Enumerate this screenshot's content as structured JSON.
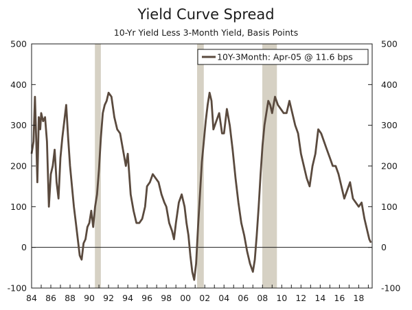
{
  "chart_data": {
    "type": "line",
    "title": "Yield Curve Spread",
    "subtitle": "10-Yr Yield Less 3-Month Yield, Basis Points",
    "legend": "10Y-3Month: Apr-05 @ 11.6 bps",
    "legend_position": "top-right",
    "xlim": [
      1984,
      2019.4
    ],
    "ylim": [
      -100,
      500
    ],
    "yticks": [
      -100,
      0,
      100,
      200,
      300,
      400,
      500
    ],
    "ytick_labels": [
      "-100",
      "0",
      "100",
      "200",
      "300",
      "400",
      "500"
    ],
    "xtick_labels": [
      "84",
      "86",
      "88",
      "90",
      "92",
      "94",
      "96",
      "98",
      "00",
      "02",
      "04",
      "06",
      "08",
      "10",
      "12",
      "14",
      "16",
      "18"
    ],
    "xtick_years": [
      1984,
      1986,
      1988,
      1990,
      1992,
      1994,
      1996,
      1998,
      2000,
      2002,
      2004,
      2006,
      2008,
      2010,
      2012,
      2014,
      2016,
      2018
    ],
    "recessions": [
      [
        1990.58,
        1991.2
      ],
      [
        2001.2,
        2001.9
      ],
      [
        2007.98,
        2009.5
      ]
    ],
    "colors": {
      "line": "#5a4a3e",
      "recession": "#d6d1c4",
      "axis": "#1a1a1a"
    },
    "series": [
      {
        "name": "10Y-3Month",
        "x": [
          1984.0,
          1984.2,
          1984.35,
          1984.5,
          1984.6,
          1984.75,
          1984.9,
          1985.0,
          1985.2,
          1985.4,
          1985.6,
          1985.8,
          1986.0,
          1986.2,
          1986.4,
          1986.6,
          1986.8,
          1987.0,
          1987.2,
          1987.4,
          1987.6,
          1987.8,
          1988.0,
          1988.2,
          1988.4,
          1988.6,
          1988.8,
          1989.0,
          1989.2,
          1989.4,
          1989.6,
          1989.8,
          1990.0,
          1990.2,
          1990.4,
          1990.6,
          1990.8,
          1991.0,
          1991.2,
          1991.4,
          1991.6,
          1991.8,
          1992.0,
          1992.3,
          1992.6,
          1992.9,
          1993.2,
          1993.5,
          1993.8,
          1994.0,
          1994.3,
          1994.6,
          1994.9,
          1995.2,
          1995.5,
          1995.8,
          1996.0,
          1996.3,
          1996.6,
          1996.9,
          1997.2,
          1997.5,
          1997.8,
          1998.0,
          1998.3,
          1998.6,
          1998.8,
          1999.0,
          1999.3,
          1999.6,
          1999.9,
          2000.1,
          2000.3,
          2000.5,
          2000.7,
          2000.9,
          2001.1,
          2001.3,
          2001.5,
          2001.7,
          2001.9,
          2002.1,
          2002.3,
          2002.5,
          2002.7,
          2002.9,
          2003.2,
          2003.5,
          2003.8,
          2004.0,
          2004.3,
          2004.6,
          2004.9,
          2005.2,
          2005.5,
          2005.8,
          2006.1,
          2006.4,
          2006.7,
          2007.0,
          2007.2,
          2007.4,
          2007.6,
          2007.8,
          2008.0,
          2008.2,
          2008.4,
          2008.6,
          2008.8,
          2009.0,
          2009.3,
          2009.6,
          2009.9,
          2010.2,
          2010.5,
          2010.8,
          2011.1,
          2011.4,
          2011.7,
          2012.0,
          2012.3,
          2012.6,
          2012.9,
          2013.2,
          2013.5,
          2013.8,
          2014.1,
          2014.4,
          2014.7,
          2015.0,
          2015.3,
          2015.6,
          2015.9,
          2016.2,
          2016.5,
          2016.8,
          2017.1,
          2017.4,
          2017.7,
          2018.0,
          2018.3,
          2018.6,
          2018.9,
          2019.1,
          2019.27
        ],
        "values": [
          230,
          260,
          370,
          250,
          160,
          320,
          290,
          330,
          310,
          320,
          260,
          100,
          180,
          200,
          240,
          160,
          120,
          220,
          270,
          310,
          350,
          270,
          200,
          150,
          100,
          60,
          20,
          -20,
          -30,
          10,
          20,
          50,
          60,
          90,
          50,
          100,
          130,
          190,
          270,
          330,
          350,
          360,
          380,
          370,
          320,
          290,
          280,
          240,
          200,
          230,
          130,
          90,
          60,
          60,
          70,
          100,
          150,
          160,
          180,
          170,
          160,
          130,
          110,
          100,
          60,
          40,
          20,
          60,
          110,
          130,
          100,
          60,
          30,
          -20,
          -60,
          -80,
          -40,
          50,
          130,
          210,
          260,
          310,
          350,
          380,
          360,
          290,
          310,
          330,
          280,
          280,
          340,
          300,
          240,
          170,
          110,
          60,
          30,
          -10,
          -40,
          -60,
          -30,
          30,
          100,
          180,
          250,
          300,
          330,
          360,
          350,
          330,
          370,
          350,
          340,
          330,
          330,
          360,
          330,
          300,
          280,
          230,
          200,
          170,
          150,
          200,
          230,
          290,
          280,
          260,
          240,
          220,
          200,
          200,
          180,
          150,
          120,
          140,
          160,
          120,
          110,
          100,
          110,
          70,
          40,
          20,
          11.6
        ]
      }
    ]
  }
}
